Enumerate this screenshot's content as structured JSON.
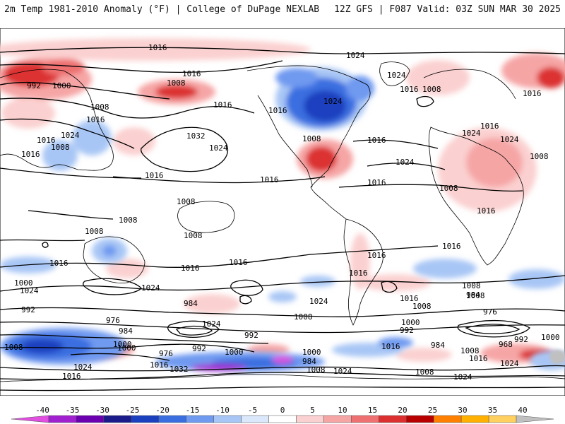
{
  "header": {
    "left_title": "2m Temp 1981-2010 Anomaly (°F) | College of DuPage NEXLAB",
    "right_title": "12Z GFS | F087 Valid: 03Z SUN MAR 30 2025"
  },
  "colorbar": {
    "ticks": [
      "-40",
      "-35",
      "-30",
      "-25",
      "-20",
      "-15",
      "-10",
      "-5",
      "0",
      "5",
      "10",
      "15",
      "20",
      "25",
      "30",
      "35",
      "40"
    ],
    "colors": [
      "#e04fe0",
      "#a020d0",
      "#6a00b0",
      "#1a1a8a",
      "#1a3fbf",
      "#3a6ee0",
      "#6f9af0",
      "#a8c6f5",
      "#dbe8fb",
      "#ffffff",
      "#fbd0d0",
      "#f6a5a5",
      "#ee7070",
      "#dc3030",
      "#b80000",
      "#ff7f00",
      "#ffb000",
      "#ffd060",
      "#c0c0c0"
    ]
  },
  "map": {
    "isobar_labels": [
      {
        "id": "n1",
        "text": "1016"
      },
      {
        "id": "n2",
        "text": "1024"
      },
      {
        "id": "n3",
        "text": "1016"
      },
      {
        "id": "n4",
        "text": "1008"
      },
      {
        "id": "n5",
        "text": "1000"
      },
      {
        "id": "n6",
        "text": "992"
      },
      {
        "id": "n7",
        "text": "1016"
      },
      {
        "id": "n8",
        "text": "1008"
      },
      {
        "id": "n9",
        "text": "1016"
      },
      {
        "id": "n10",
        "text": "1024"
      },
      {
        "id": "n11",
        "text": "1016"
      },
      {
        "id": "n12",
        "text": "1008"
      },
      {
        "id": "n13",
        "text": "1016"
      },
      {
        "id": "n14",
        "text": "1032"
      },
      {
        "id": "n15",
        "text": "1024"
      },
      {
        "id": "n16",
        "text": "1016"
      },
      {
        "id": "n17",
        "text": "1016"
      },
      {
        "id": "n18",
        "text": "1024"
      },
      {
        "id": "n19",
        "text": "1024"
      },
      {
        "id": "n20",
        "text": "1008"
      },
      {
        "id": "n21",
        "text": "1016"
      },
      {
        "id": "n22",
        "text": "1024"
      },
      {
        "id": "n23",
        "text": "1016"
      },
      {
        "id": "n24",
        "text": "1016"
      },
      {
        "id": "n25",
        "text": "1024"
      },
      {
        "id": "n26",
        "text": "1016"
      },
      {
        "id": "n27",
        "text": "1016"
      },
      {
        "id": "n28",
        "text": "1016"
      },
      {
        "id": "n29",
        "text": "1024"
      },
      {
        "id": "n30",
        "text": "1008"
      },
      {
        "id": "n31",
        "text": "1008"
      },
      {
        "id": "n32",
        "text": "1008"
      },
      {
        "id": "n33",
        "text": "1016"
      },
      {
        "id": "n34",
        "text": "1008"
      },
      {
        "id": "n35",
        "text": "1008"
      },
      {
        "id": "n36",
        "text": "1008"
      },
      {
        "id": "n37",
        "text": "1008"
      },
      {
        "id": "n38",
        "text": "1016"
      },
      {
        "id": "n39",
        "text": "1016"
      },
      {
        "id": "n40",
        "text": "1016"
      },
      {
        "id": "n41",
        "text": "1016"
      },
      {
        "id": "n42",
        "text": "1016"
      },
      {
        "id": "n43",
        "text": "1016"
      },
      {
        "id": "n44",
        "text": "1008"
      },
      {
        "id": "n45",
        "text": "1000"
      },
      {
        "id": "n46",
        "text": "1024"
      },
      {
        "id": "n47",
        "text": "1024"
      },
      {
        "id": "n48",
        "text": "1024"
      },
      {
        "id": "n49",
        "text": "1008"
      },
      {
        "id": "n50",
        "text": "984"
      },
      {
        "id": "n51",
        "text": "992"
      },
      {
        "id": "n52",
        "text": "976"
      },
      {
        "id": "n53",
        "text": "984"
      },
      {
        "id": "n54",
        "text": "1024"
      },
      {
        "id": "n55",
        "text": "1000"
      },
      {
        "id": "n56",
        "text": "976"
      },
      {
        "id": "n57",
        "text": "992"
      },
      {
        "id": "n58",
        "text": "1000"
      },
      {
        "id": "n59",
        "text": "992"
      },
      {
        "id": "n60",
        "text": "1000"
      },
      {
        "id": "n61",
        "text": "984"
      },
      {
        "id": "n62",
        "text": "1016"
      },
      {
        "id": "n63",
        "text": "1024"
      },
      {
        "id": "n64",
        "text": "1008"
      },
      {
        "id": "n65",
        "text": "1008"
      },
      {
        "id": "n66",
        "text": "984"
      },
      {
        "id": "n67",
        "text": "976"
      },
      {
        "id": "n68",
        "text": "968"
      },
      {
        "id": "n69",
        "text": "992"
      },
      {
        "id": "n70",
        "text": "1000"
      },
      {
        "id": "n71",
        "text": "1008"
      },
      {
        "id": "n72",
        "text": "1016"
      },
      {
        "id": "n73",
        "text": "1024"
      },
      {
        "id": "n74",
        "text": "1024"
      },
      {
        "id": "n75",
        "text": "1000"
      },
      {
        "id": "n76",
        "text": "1008"
      },
      {
        "id": "n77",
        "text": "1016"
      },
      {
        "id": "n78",
        "text": "1032"
      },
      {
        "id": "n79",
        "text": "1024"
      },
      {
        "id": "n80",
        "text": "1016"
      },
      {
        "id": "n81",
        "text": "1008"
      },
      {
        "id": "n82",
        "text": "1000"
      },
      {
        "id": "n83",
        "text": "992"
      },
      {
        "id": "n84",
        "text": "1008"
      },
      {
        "id": "n85",
        "text": "1016"
      },
      {
        "id": "n86",
        "text": "984"
      }
    ]
  }
}
